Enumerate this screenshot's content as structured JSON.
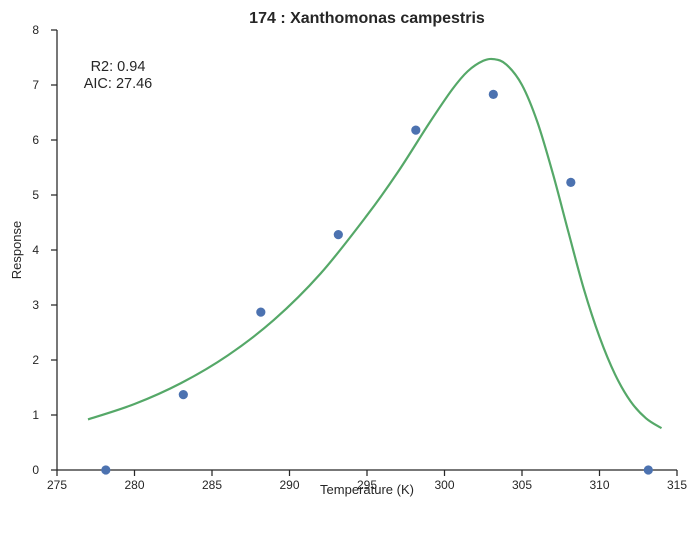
{
  "chart_data": {
    "type": "scatter",
    "title": "174 : Xanthomonas campestris",
    "xlabel": "Temperature (K)",
    "ylabel": "Response",
    "xlim": [
      275,
      315
    ],
    "ylim": [
      0,
      8
    ],
    "xticks": [
      275,
      280,
      285,
      290,
      295,
      300,
      305,
      310,
      315
    ],
    "yticks": [
      0,
      1,
      2,
      3,
      4,
      5,
      6,
      7,
      8
    ],
    "grid": false,
    "annotations": [
      "R2: 0.94",
      "AIC: 27.46"
    ],
    "series": [
      {
        "kind": "points",
        "color": "#4c72b0",
        "x": [
          278.15,
          283.15,
          288.15,
          293.15,
          298.15,
          303.15,
          308.15,
          313.15
        ],
        "y": [
          0.0,
          1.37,
          2.87,
          4.28,
          6.18,
          6.83,
          5.23,
          0.0
        ]
      },
      {
        "kind": "fit-line",
        "color": "#55a868",
        "x": [
          277.0,
          280.0,
          283.0,
          286.0,
          289.0,
          292.0,
          295.0,
          297.0,
          299.0,
          300.5,
          301.5,
          302.5,
          303.2,
          304.0,
          305.0,
          306.0,
          307.0,
          308.0,
          309.0,
          310.0,
          311.0,
          312.0,
          313.0,
          314.0
        ],
        "y": [
          0.92,
          1.2,
          1.58,
          2.08,
          2.73,
          3.57,
          4.63,
          5.42,
          6.3,
          6.92,
          7.25,
          7.44,
          7.47,
          7.37,
          7.0,
          6.32,
          5.38,
          4.32,
          3.28,
          2.42,
          1.74,
          1.25,
          0.94,
          0.76
        ]
      }
    ]
  }
}
